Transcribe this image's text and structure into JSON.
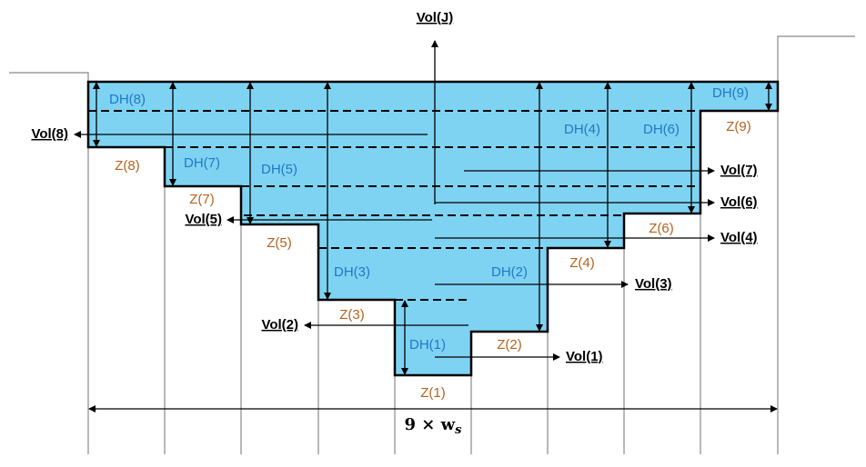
{
  "vol_j": "Vol(J)",
  "dh_labels": [
    "DH(1)",
    "DH(2)",
    "DH(3)",
    "DH(4)",
    "DH(5)",
    "DH(6)",
    "DH(7)",
    "DH(8)",
    "DH(9)"
  ],
  "z_labels": [
    "Z(1)",
    "Z(2)",
    "Z(3)",
    "Z(4)",
    "Z(5)",
    "Z(6)",
    "Z(7)",
    "Z(8)",
    "Z(9)"
  ],
  "vol_labels": [
    "Vol(1)",
    "Vol(2)",
    "Vol(3)",
    "Vol(4)",
    "Vol(5)",
    "Vol(6)",
    "Vol(7)",
    "Vol(8)"
  ],
  "width_label": "9 × w",
  "width_subscript": "s"
}
